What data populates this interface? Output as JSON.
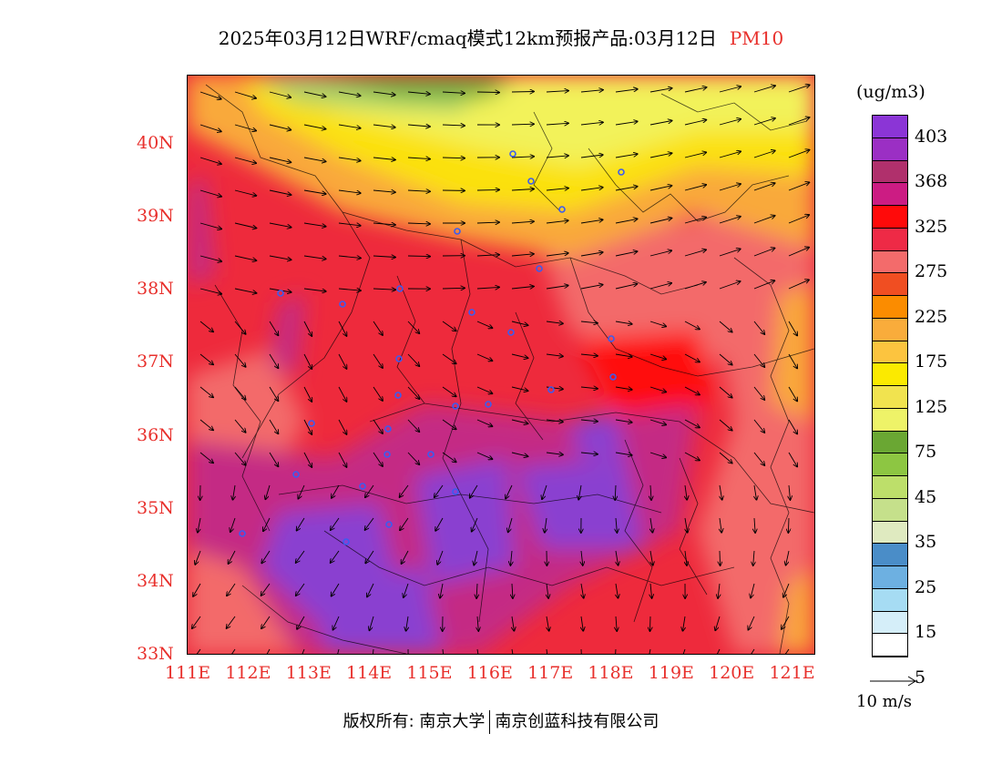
{
  "title": {
    "main": "2025年03月12日WRF/cmaq模式12km预报产品:03月12日",
    "product": "PM10"
  },
  "colors": {
    "title_product": "#e8302c",
    "axis_labels": "#e8302c",
    "map_border": "#000000"
  },
  "map": {
    "lat_ticks": [
      "40N",
      "39N",
      "38N",
      "37N",
      "36N",
      "35N",
      "34N",
      "33N"
    ],
    "lon_ticks": [
      "111E",
      "112E",
      "113E",
      "114E",
      "115E",
      "116E",
      "117E",
      "118E",
      "119E",
      "120E",
      "121E"
    ],
    "lat_range": [
      33,
      40.95
    ],
    "lon_range": [
      111,
      121.4
    ],
    "regions": [
      {
        "level": "45",
        "color": "#6aaa37",
        "desc": "northwest corner"
      },
      {
        "level": "75",
        "color": "#f2f25a",
        "desc": "north band"
      },
      {
        "level": "125",
        "color": "#fbe10c",
        "desc": "north belt"
      },
      {
        "level": "175",
        "color": "#f9a93a",
        "desc": "north-central"
      },
      {
        "level": "275",
        "color": "#f36b6b",
        "desc": "widespread"
      },
      {
        "level": "325",
        "color": "#ee2a3c",
        "desc": "central"
      },
      {
        "level": "368",
        "color": "#c42c84",
        "desc": "south-central"
      },
      {
        "level": "403",
        "color": "#8a3fd0",
        "desc": "southern cores"
      }
    ]
  },
  "legend": {
    "unit": "(ug/m3)",
    "swatches": [
      {
        "color": "#8b35d6"
      },
      {
        "color": "#9b2fc4"
      },
      {
        "color": "#b0306c"
      },
      {
        "color": "#cc1c83"
      },
      {
        "color": "#ff0a0a"
      },
      {
        "color": "#ee2a46"
      },
      {
        "color": "#f36b6b"
      },
      {
        "color": "#f04e22"
      },
      {
        "color": "#fb8c00"
      },
      {
        "color": "#f9ac3b"
      },
      {
        "color": "#fcc43f"
      },
      {
        "color": "#fbea00"
      },
      {
        "color": "#f1e34f"
      },
      {
        "color": "#eef368"
      },
      {
        "color": "#6aa733"
      },
      {
        "color": "#8dc642"
      },
      {
        "color": "#bddf6a"
      },
      {
        "color": "#c5e08b"
      },
      {
        "color": "#dfeac0"
      },
      {
        "color": "#4a8dc8"
      },
      {
        "color": "#6db0e1"
      },
      {
        "color": "#a6dcf3"
      },
      {
        "color": "#d5eef9"
      },
      {
        "color": "#ffffff"
      }
    ],
    "labels": [
      "403",
      "368",
      "325",
      "275",
      "225",
      "175",
      "125",
      "75",
      "45",
      "35",
      "25",
      "15",
      "5"
    ]
  },
  "wind_reference": {
    "label": "10 m/s"
  },
  "copyright": {
    "left": "版权所有: 南京大学",
    "right": "南京创蓝科技有限公司"
  }
}
